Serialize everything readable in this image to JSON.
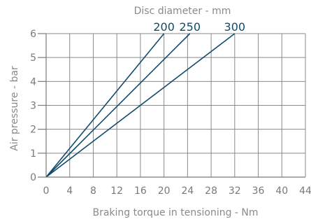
{
  "chart_data": {
    "type": "line",
    "title": "Disc diameter - mm",
    "xlabel": "Braking torque in tensioning - Nm",
    "ylabel": "Air pressure - bar",
    "xlim": [
      0,
      44
    ],
    "ylim": [
      0,
      6
    ],
    "x_ticks": [
      "0",
      "4",
      "8",
      "12",
      "16",
      "20",
      "24",
      "28",
      "32",
      "36",
      "40",
      "44"
    ],
    "y_ticks": [
      "0",
      "1",
      "2",
      "3",
      "4",
      "5",
      "6"
    ],
    "grid": true,
    "series": [
      {
        "name": "200",
        "x": [
          0,
          20
        ],
        "y": [
          0,
          6
        ]
      },
      {
        "name": "250",
        "x": [
          0,
          24.4
        ],
        "y": [
          0,
          6
        ]
      },
      {
        "name": "300",
        "x": [
          0,
          32
        ],
        "y": [
          0,
          6
        ]
      }
    ],
    "colors": {
      "series": "#0f4c6c",
      "grid": "#8a8a8a",
      "text": "#7a7a7a"
    }
  }
}
